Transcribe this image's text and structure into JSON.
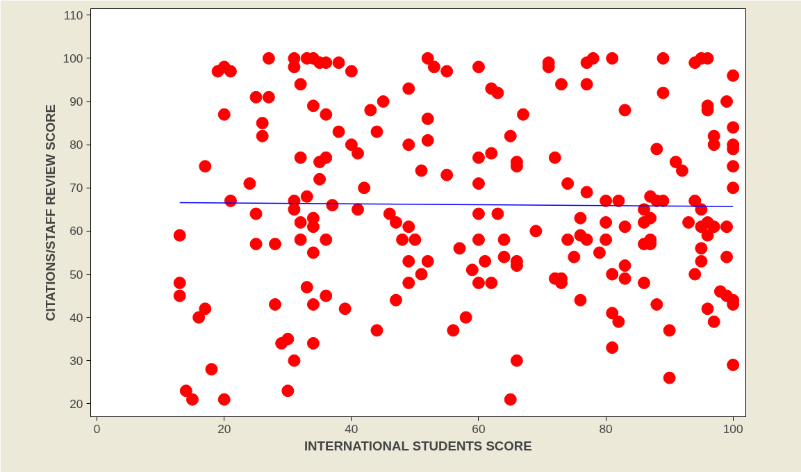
{
  "chart_data": {
    "type": "scatter",
    "xlabel": "INTERNATIONAL STUDENTS SCORE",
    "ylabel": "CITATIONS/STAFF REVIEW SCORE",
    "xlim": [
      -1,
      102
    ],
    "ylim": [
      17,
      111.5
    ],
    "xticks": [
      0,
      20,
      40,
      60,
      80,
      100
    ],
    "yticks": [
      20,
      30,
      40,
      50,
      60,
      70,
      80,
      90,
      100,
      110
    ],
    "grid": false,
    "marker": "circle",
    "series": [
      {
        "color": "#ff0000",
        "x": [
          13,
          13,
          13,
          14,
          15,
          16,
          17,
          17,
          18,
          19,
          20,
          20,
          20,
          21,
          21,
          24,
          25,
          25,
          25,
          26,
          26,
          27,
          27,
          28,
          28,
          29,
          30,
          30,
          31,
          31,
          31,
          31,
          31,
          32,
          32,
          32,
          32,
          33,
          33,
          33,
          34,
          34,
          34,
          34,
          34,
          34,
          34,
          35,
          35,
          35,
          36,
          36,
          36,
          36,
          36,
          37,
          38,
          38,
          39,
          40,
          40,
          41,
          41,
          42,
          43,
          44,
          44,
          45,
          46,
          47,
          47,
          48,
          49,
          49,
          49,
          49,
          49,
          50,
          51,
          51,
          52,
          52,
          52,
          52,
          53,
          55,
          55,
          56,
          57,
          58,
          59,
          60,
          60,
          60,
          60,
          60,
          60,
          61,
          62,
          62,
          62,
          63,
          63,
          64,
          64,
          65,
          65,
          66,
          66,
          66,
          66,
          66,
          67,
          69,
          71,
          71,
          72,
          72,
          73,
          73,
          73,
          74,
          74,
          75,
          76,
          76,
          76,
          77,
          77,
          77,
          77,
          78,
          79,
          80,
          80,
          80,
          81,
          81,
          81,
          81,
          82,
          82,
          83,
          83,
          83,
          83,
          86,
          86,
          86,
          86,
          87,
          87,
          87,
          87,
          88,
          88,
          88,
          89,
          89,
          89,
          90,
          90,
          91,
          92,
          93,
          94,
          94,
          94,
          95,
          95,
          95,
          95,
          95,
          96,
          96,
          96,
          96,
          96,
          96,
          97,
          97,
          97,
          97,
          98,
          99,
          99,
          99,
          99,
          100,
          100,
          100,
          100,
          100,
          100,
          100,
          100,
          100
        ],
        "values": [
          59,
          48,
          45,
          23,
          21,
          40,
          75,
          42,
          28,
          97,
          98,
          87,
          21,
          97,
          67,
          71,
          91,
          64,
          57,
          85,
          82,
          100,
          91,
          57,
          43,
          34,
          35,
          23,
          100,
          98,
          67,
          65,
          30,
          94,
          77,
          62,
          58,
          100,
          68,
          47,
          100,
          89,
          63,
          61,
          55,
          43,
          34,
          99,
          76,
          72,
          99,
          87,
          77,
          58,
          45,
          66,
          99,
          83,
          42,
          97,
          80,
          78,
          65,
          70,
          88,
          83,
          37,
          90,
          64,
          62,
          44,
          58,
          93,
          80,
          61,
          53,
          48,
          58,
          74,
          50,
          100,
          86,
          81,
          53,
          98,
          97,
          73,
          37,
          56,
          40,
          51,
          98,
          77,
          71,
          64,
          58,
          48,
          53,
          93,
          78,
          48,
          92,
          64,
          58,
          54,
          82,
          21,
          76,
          75,
          53,
          52,
          30,
          87,
          60,
          99,
          98,
          77,
          49,
          94,
          49,
          48,
          71,
          58,
          54,
          63,
          59,
          44,
          99,
          94,
          69,
          58,
          100,
          55,
          67,
          62,
          58,
          100,
          50,
          41,
          33,
          67,
          39,
          88,
          61,
          52,
          49,
          65,
          62,
          57,
          48,
          68,
          63,
          58,
          57,
          79,
          67,
          43,
          100,
          92,
          67,
          37,
          26,
          76,
          74,
          62,
          99,
          67,
          50,
          100,
          65,
          61,
          56,
          53,
          100,
          89,
          88,
          62,
          59,
          42,
          82,
          80,
          61,
          39,
          46,
          90,
          61,
          54,
          45,
          96,
          84,
          80,
          79,
          75,
          70,
          44,
          43,
          29
        ]
      },
      {
        "type": "line",
        "color": "#0000ff",
        "marker": "none",
        "line_style": "solid",
        "x": [
          13,
          100
        ],
        "values": [
          66.6,
          65.7
        ]
      }
    ]
  }
}
